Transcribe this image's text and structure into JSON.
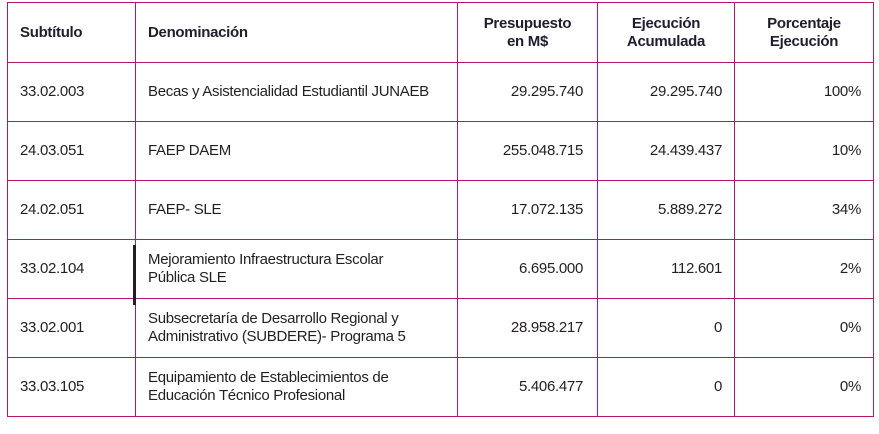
{
  "table": {
    "headers": {
      "subtitulo": "Subtítulo",
      "denominacion": "Denominación",
      "presupuesto_line1": "Presupuesto",
      "presupuesto_line2": "en M$",
      "ejecucion_line1": "Ejecución",
      "ejecucion_line2": "Acumulada",
      "porcentaje_line1": "Porcentaje",
      "porcentaje_line2": "Ejecución"
    },
    "rows": [
      {
        "subtitulo": "33.02.003",
        "denominacion_line1": "Becas y Asistencialidad Estudiantil JUNAEB",
        "denominacion_line2": "",
        "presupuesto": "29.295.740",
        "ejecucion": "29.295.740",
        "porcentaje": "100%"
      },
      {
        "subtitulo": "24.03.051",
        "denominacion_line1": "FAEP DAEM",
        "denominacion_line2": "",
        "presupuesto": "255.048.715",
        "ejecucion": "24.439.437",
        "porcentaje": "10%"
      },
      {
        "subtitulo": "24.02.051",
        "denominacion_line1": "FAEP- SLE",
        "denominacion_line2": "",
        "presupuesto": "17.072.135",
        "ejecucion": "5.889.272",
        "porcentaje": "34%"
      },
      {
        "subtitulo": "33.02.104",
        "denominacion_line1": "Mejoramiento Infraestructura Escolar",
        "denominacion_line2": "Pública SLE",
        "presupuesto": "6.695.000",
        "ejecucion": "112.601",
        "porcentaje": "2%"
      },
      {
        "subtitulo": "33.02.001",
        "denominacion_line1": "Subsecretaría de Desarrollo Regional y",
        "denominacion_line2": "Administrativo (SUBDERE)- Programa 5",
        "presupuesto": "28.958.217",
        "ejecucion": "0",
        "porcentaje": "0%"
      },
      {
        "subtitulo": "33.03.105",
        "denominacion_line1": "Equipamiento de Establecimientos de",
        "denominacion_line2": "Educación Técnico Profesional",
        "presupuesto": "5.406.477",
        "ejecucion": "0",
        "porcentaje": "0%"
      }
    ]
  },
  "colors": {
    "border": "#b5176e",
    "text": "#231f20"
  }
}
